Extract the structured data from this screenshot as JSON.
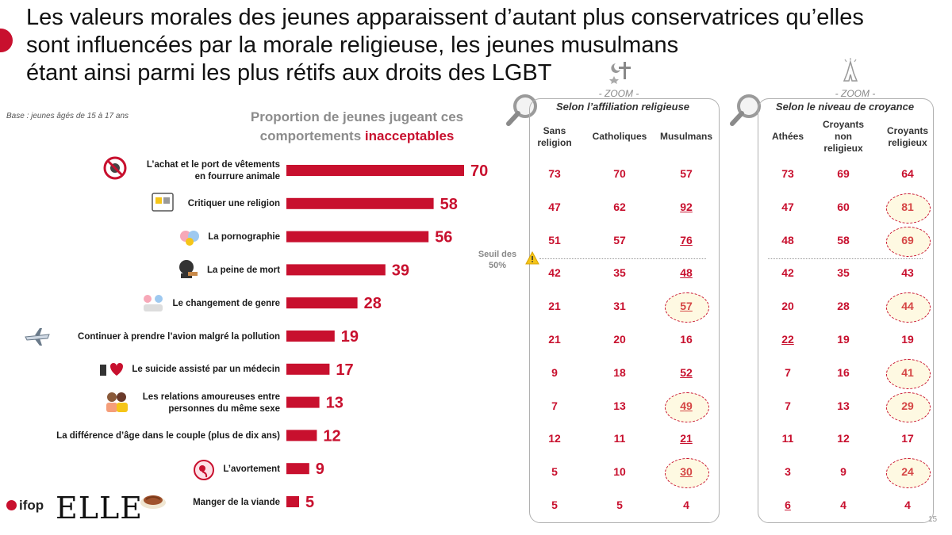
{
  "title_lines": [
    "Les valeurs morales des jeunes apparaissent d’autant plus conservatrices qu’elles",
    "sont influencées par la morale religieuse, les jeunes musulmans",
    "étant ainsi parmi les plus rétifs aux droits des LGBT"
  ],
  "base_note": "Base : jeunes âgés de 15 à 17 ans",
  "chart_title_main": "Proportion de jeunes jugeant ces comportements",
  "chart_title_highlight": "inacceptables",
  "colors": {
    "accent": "#c8102e",
    "highlight": "#fde68a",
    "muted": "#8c8c8c"
  },
  "chart_data": {
    "type": "bar",
    "orientation": "horizontal",
    "title": "Proportion de jeunes jugeant ces comportements inacceptables",
    "categories": [
      "L’achat et le port de vêtements en fourrure animale",
      "Critiquer une religion",
      "La pornographie",
      "La peine de mort",
      "Le changement de genre",
      "Continuer à prendre l’avion malgré la pollution",
      "Le suicide assisté par un médecin",
      "Les relations amoureuses entre personnes du même sexe",
      "La différence d’âge dans le couple (plus de dix ans)",
      "L’avortement",
      "Manger de la viande"
    ],
    "values": [
      70,
      58,
      56,
      39,
      28,
      19,
      17,
      13,
      12,
      9,
      5
    ],
    "xlim": [
      0,
      100
    ],
    "grid": false,
    "bar_color": "#c8102e"
  },
  "row_label_lines": [
    [
      "L’achat et le port de vêtements",
      "en fourrure animale"
    ],
    [
      "Critiquer une religion"
    ],
    [
      "La pornographie"
    ],
    [
      "La peine de mort"
    ],
    [
      "Le changement de genre"
    ],
    [
      "Continuer à prendre l’avion malgré la pollution"
    ],
    [
      "Le suicide assisté par un médecin"
    ],
    [
      "Les relations amoureuses entre",
      "personnes du même sexe"
    ],
    [
      "La différence d’âge dans le couple (plus de dix ans)"
    ],
    [
      "L’avortement"
    ],
    [
      "Manger de la viande"
    ]
  ],
  "row_icons": [
    "no-fur-icon",
    "religion-symbols-icon",
    "adult-content-icon",
    "death-penalty-icon",
    "gender-change-icon",
    "airplane-icon",
    "assisted-suicide-icon",
    "same-sex-couple-icon",
    "",
    "fetus-icon",
    "meat-icon"
  ],
  "seuil_label": [
    "Seuil des",
    "50%"
  ],
  "panels": [
    {
      "zoom": "- ZOOM -",
      "title": "Selon l’affiliation religieuse",
      "icon": "cross-crescent-star-icon",
      "columns": [
        [
          "Sans",
          "religion"
        ],
        [
          "Catholiques"
        ],
        [
          "Musulmans"
        ]
      ],
      "values": [
        [
          73,
          70,
          57
        ],
        [
          47,
          62,
          92
        ],
        [
          51,
          57,
          76
        ],
        [
          42,
          35,
          48
        ],
        [
          21,
          31,
          57
        ],
        [
          21,
          20,
          16
        ],
        [
          9,
          18,
          52
        ],
        [
          7,
          13,
          49
        ],
        [
          12,
          11,
          21
        ],
        [
          5,
          10,
          30
        ],
        [
          5,
          5,
          4
        ]
      ],
      "underlined": [
        [
          1,
          2
        ],
        [
          2,
          2
        ],
        [
          3,
          2
        ],
        [
          4,
          2
        ],
        [
          6,
          2
        ],
        [
          7,
          2
        ],
        [
          8,
          2
        ],
        [
          9,
          2
        ]
      ],
      "circled": [
        [
          4,
          2
        ],
        [
          7,
          2
        ],
        [
          9,
          2
        ]
      ],
      "highlighted": [
        [
          0,
          0
        ]
      ]
    },
    {
      "zoom": "- ZOOM -",
      "title": "Selon le niveau de croyance",
      "icon": "praying-hands-icon",
      "columns": [
        [
          "Athées"
        ],
        [
          "Croyants",
          "non",
          "religieux"
        ],
        [
          "Croyants",
          "religieux"
        ]
      ],
      "values": [
        [
          73,
          69,
          64
        ],
        [
          47,
          60,
          81
        ],
        [
          48,
          58,
          69
        ],
        [
          42,
          35,
          43
        ],
        [
          20,
          28,
          44
        ],
        [
          22,
          19,
          19
        ],
        [
          7,
          16,
          41
        ],
        [
          7,
          13,
          29
        ],
        [
          11,
          12,
          17
        ],
        [
          3,
          9,
          24
        ],
        [
          6,
          4,
          4
        ]
      ],
      "underlined": [
        [
          5,
          0
        ],
        [
          10,
          0
        ]
      ],
      "circled": [
        [
          1,
          2
        ],
        [
          2,
          2
        ],
        [
          4,
          2
        ],
        [
          6,
          2
        ],
        [
          7,
          2
        ],
        [
          9,
          2
        ]
      ],
      "highlighted": [
        [
          0,
          0
        ]
      ]
    }
  ],
  "logo_ifop": "ifop",
  "logo_elle": "ELLE",
  "page_number": "15"
}
